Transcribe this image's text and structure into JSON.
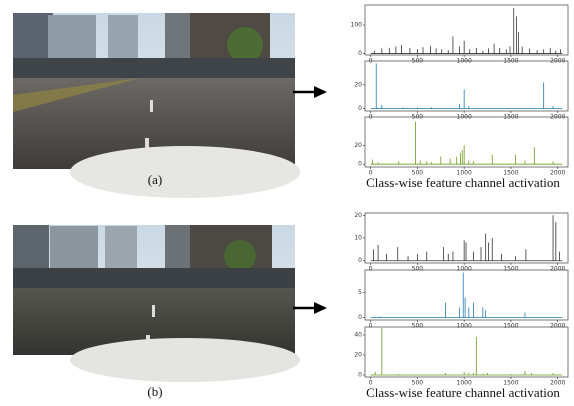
{
  "figure": {
    "labels": [
      "(a)",
      "(b)"
    ],
    "captions": [
      "Class-wise feature channel activation",
      "Class-wise feature channel activation"
    ]
  },
  "chart_data": [
    {
      "type": "spike",
      "color": "#333333",
      "xlim": [
        -60,
        2110
      ],
      "ylim": [
        -5,
        170
      ],
      "xticks": [
        0,
        500,
        1000,
        1500,
        2000
      ],
      "yticks": [
        0,
        100
      ],
      "x": [
        40,
        120,
        200,
        270,
        330,
        420,
        500,
        560,
        640,
        700,
        760,
        830,
        880,
        950,
        1000,
        1060,
        1130,
        1200,
        1260,
        1320,
        1380,
        1450,
        1490,
        1530,
        1560,
        1580,
        1620,
        1700,
        1780,
        1850,
        1920,
        1980,
        2030
      ],
      "values": [
        10,
        18,
        20,
        25,
        30,
        20,
        15,
        22,
        28,
        18,
        15,
        12,
        60,
        25,
        45,
        15,
        20,
        10,
        18,
        35,
        20,
        15,
        25,
        160,
        130,
        75,
        25,
        18,
        12,
        15,
        20,
        10,
        15
      ]
    },
    {
      "type": "spike",
      "color": "#1f77b4",
      "xlim": [
        -60,
        2110
      ],
      "ylim": [
        -2,
        40
      ],
      "xticks": [
        0,
        500,
        1000,
        1500,
        2000
      ],
      "yticks": [
        0,
        20
      ],
      "x": [
        60,
        120,
        350,
        500,
        650,
        950,
        1000,
        1050,
        1850,
        1950
      ],
      "values": [
        38,
        3,
        1,
        1,
        1,
        4,
        16,
        2,
        22,
        2
      ]
    },
    {
      "type": "spike",
      "color": "#6a9a1f",
      "xlim": [
        -60,
        2110
      ],
      "ylim": [
        -3,
        50
      ],
      "xticks": [
        0,
        500,
        1000,
        1500,
        2000
      ],
      "yticks": [
        0,
        20
      ],
      "x": [
        20,
        80,
        300,
        480,
        530,
        600,
        650,
        750,
        850,
        920,
        960,
        980,
        1000,
        1050,
        1100,
        1300,
        1550,
        1650,
        1750,
        1950
      ],
      "values": [
        5,
        2,
        3,
        45,
        4,
        3,
        2,
        8,
        6,
        8,
        12,
        15,
        20,
        4,
        3,
        10,
        10,
        4,
        18,
        3
      ]
    },
    {
      "type": "spike",
      "color": "#333333",
      "xlim": [
        -60,
        2110
      ],
      "ylim": [
        -1,
        21
      ],
      "xticks": [
        0,
        500,
        1000,
        1500,
        2000
      ],
      "yticks": [
        0,
        10,
        20
      ],
      "x": [
        30,
        80,
        170,
        290,
        400,
        500,
        600,
        780,
        830,
        880,
        1000,
        1020,
        1100,
        1180,
        1230,
        1260,
        1300,
        1400,
        1550,
        1660,
        1950,
        1980,
        2020
      ],
      "values": [
        5,
        7,
        3,
        6,
        2,
        3,
        4,
        6,
        3,
        4,
        9,
        8,
        4,
        6,
        12,
        8,
        10,
        3,
        2,
        5,
        20,
        17,
        4
      ]
    },
    {
      "type": "spike",
      "color": "#1f77b4",
      "xlim": [
        -60,
        2110
      ],
      "ylim": [
        -0.5,
        9.5
      ],
      "xticks": [
        0,
        500,
        1000,
        1500,
        2000
      ],
      "yticks": [
        0,
        5
      ],
      "x": [
        100,
        800,
        950,
        990,
        1010,
        1050,
        1100,
        1200,
        1230,
        1650
      ],
      "values": [
        0.2,
        3,
        2,
        9,
        4,
        2,
        3,
        2,
        1.5,
        1
      ]
    },
    {
      "type": "spike",
      "color": "#6a9a1f",
      "xlim": [
        -60,
        2110
      ],
      "ylim": [
        -2,
        48
      ],
      "xticks": [
        0,
        500,
        1000,
        1500,
        2000
      ],
      "yticks": [
        0,
        20,
        40
      ],
      "x": [
        50,
        120,
        300,
        800,
        1000,
        1050,
        1100,
        1130,
        1200,
        1250,
        1500,
        1650,
        1720,
        1950
      ],
      "values": [
        3,
        47,
        1,
        2,
        3,
        2,
        2,
        38,
        1,
        2,
        1,
        4,
        2,
        2
      ]
    }
  ]
}
